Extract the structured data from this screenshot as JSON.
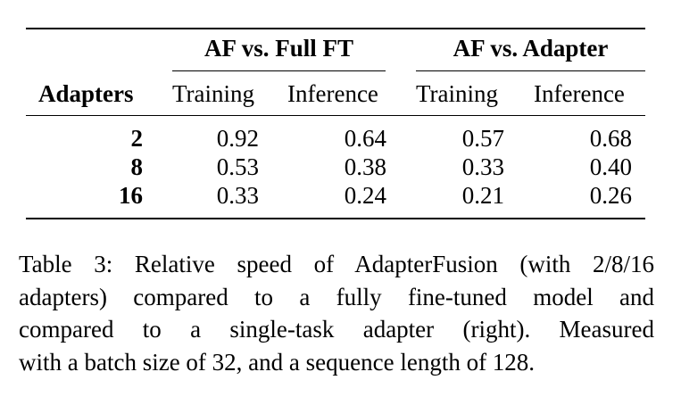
{
  "table": {
    "group_headers": [
      "AF vs. Full FT",
      "AF vs. Adapter"
    ],
    "row_header": "Adapters",
    "sub_headers": [
      "Training",
      "Inference",
      "Training",
      "Inference"
    ],
    "rows": [
      {
        "adapters": "2",
        "cells": [
          "0.92",
          "0.64",
          "0.57",
          "0.68"
        ]
      },
      {
        "adapters": "8",
        "cells": [
          "0.53",
          "0.38",
          "0.33",
          "0.40"
        ]
      },
      {
        "adapters": "16",
        "cells": [
          "0.33",
          "0.24",
          "0.21",
          "0.26"
        ]
      }
    ]
  },
  "caption": {
    "lines": [
      "Table 3: Relative speed of AdapterFusion (with 2/8/16",
      "adapters) compared to a fully fine-tuned model and",
      "compared to a single-task adapter (right).  Measured",
      "with a batch size of 32, and a sequence length of 128."
    ]
  }
}
